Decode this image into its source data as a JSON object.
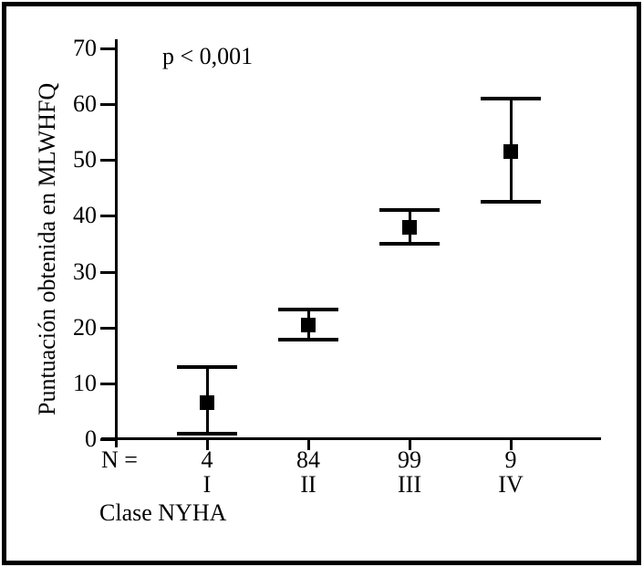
{
  "chart_data": {
    "type": "scatter",
    "subtype": "mean-with-error-bars",
    "title": "",
    "annotation": "p < 0,001",
    "xlabel": "Clase NYHA",
    "ylabel": "Puntuación obtenida en MLWHFQ",
    "ylim": [
      0,
      70
    ],
    "y_ticks": [
      0,
      10,
      20,
      30,
      40,
      50,
      60,
      70
    ],
    "grid": "off",
    "legend": "none",
    "marker": "filled-square",
    "n_label": "N =",
    "categories": [
      "I",
      "II",
      "III",
      "IV"
    ],
    "n_values": [
      "4",
      "84",
      "99",
      "9"
    ],
    "points": [
      {
        "category": "I",
        "n": 4,
        "mean": 6.5,
        "ci_low": 1,
        "ci_high": 13
      },
      {
        "category": "II",
        "n": 84,
        "mean": 20.5,
        "ci_low": 17.8,
        "ci_high": 23.2
      },
      {
        "category": "III",
        "n": 99,
        "mean": 38,
        "ci_low": 35,
        "ci_high": 41
      },
      {
        "category": "IV",
        "n": 9,
        "mean": 51.5,
        "ci_low": 42.5,
        "ci_high": 61
      }
    ],
    "colors": {
      "foreground": "#000000",
      "background": "#ffffff"
    }
  }
}
